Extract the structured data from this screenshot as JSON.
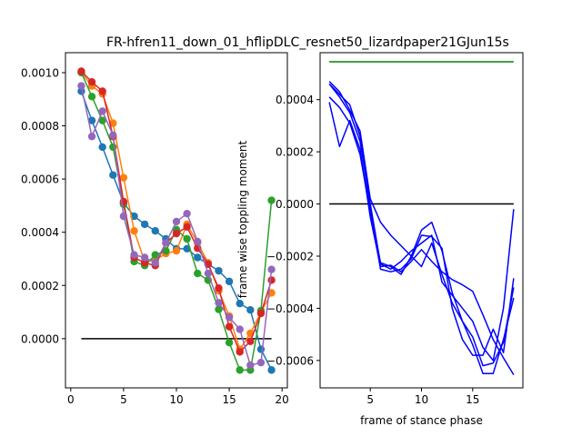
{
  "figure": {
    "title": "FR-hfren11_down_01_hflipDLC_resnet50_lizardpaper21GJun15s"
  },
  "chart_data": [
    {
      "type": "line",
      "panel": "left",
      "title": "",
      "xlabel": "",
      "ylabel": "",
      "xlim": [
        -0.5,
        20.5
      ],
      "ylim": [
        -0.000185,
        0.001075
      ],
      "xticks": [
        0,
        5,
        10,
        15,
        20
      ],
      "xtick_labels": [
        "0",
        "5",
        "10",
        "15",
        "20"
      ],
      "yticks": [
        0.0,
        0.0002,
        0.0004,
        0.0006,
        0.0008,
        0.001
      ],
      "ytick_labels": [
        "0.0000",
        "0.0002",
        "0.0004",
        "0.0006",
        "0.0008",
        "0.0010"
      ],
      "grid": false,
      "markers": true,
      "x": [
        1,
        2,
        3,
        4,
        5,
        6,
        7,
        8,
        9,
        10,
        11,
        12,
        13,
        14,
        15,
        16,
        17,
        18,
        19
      ],
      "series": [
        {
          "color": "#1f77b4",
          "values": [
            0.00093,
            0.00082,
            0.00072,
            0.000615,
            0.00051,
            0.00046,
            0.00043,
            0.000405,
            0.000375,
            0.000338,
            0.000338,
            0.000305,
            0.00028,
            0.000255,
            0.000215,
            0.000132,
            0.000108,
            -4e-05,
            -0.000118
          ]
        },
        {
          "color": "#ff7f0e",
          "values": [
            0.001,
            0.00095,
            0.00092,
            0.00081,
            0.000605,
            0.000405,
            0.00029,
            0.000295,
            0.00032,
            0.00033,
            0.00043,
            0.00036,
            0.000285,
            0.00018,
            8.5e-05,
            -4e-05,
            2e-05,
            0.0001,
            0.000172
          ]
        },
        {
          "color": "#2ca02c",
          "values": [
            0.001,
            0.00091,
            0.00082,
            0.00072,
            0.000505,
            0.00029,
            0.000275,
            0.000315,
            0.00033,
            0.00041,
            0.000375,
            0.000245,
            0.00022,
            0.00011,
            -1.5e-05,
            -0.000118,
            -0.000118,
            0.000105,
            0.00052
          ]
        },
        {
          "color": "#d62728",
          "values": [
            0.001005,
            0.000965,
            0.00093,
            0.00076,
            0.000515,
            0.000305,
            0.000285,
            0.000275,
            0.00036,
            0.000395,
            0.00042,
            0.00034,
            0.00028,
            0.00019,
            4.5e-05,
            -5e-05,
            -1e-05,
            9.5e-05,
            0.00022
          ]
        },
        {
          "color": "#9467bd",
          "values": [
            0.00095,
            0.00076,
            0.000855,
            0.000765,
            0.00046,
            0.000315,
            0.000305,
            0.000285,
            0.00036,
            0.00044,
            0.00047,
            0.000365,
            0.000245,
            0.000135,
            8e-05,
            3.5e-05,
            -0.0001,
            -9e-05,
            0.00026
          ]
        }
      ],
      "reference_line": {
        "color": "#000000",
        "x": [
          1,
          19
        ],
        "y": [
          0,
          0
        ]
      }
    },
    {
      "type": "line",
      "panel": "right",
      "title": "",
      "xlabel": "frame of stance phase",
      "ylabel": "frame wise toppling moment",
      "xlim": [
        0.1,
        19.9
      ],
      "ylim": [
        -0.000705,
        0.00058
      ],
      "xticks": [
        5,
        10,
        15
      ],
      "xtick_labels": [
        "5",
        "10",
        "15"
      ],
      "yticks": [
        -0.0006,
        -0.0004,
        -0.0002,
        0.0,
        0.0002,
        0.0004
      ],
      "ytick_labels": [
        "−0.0006",
        "−0.0004",
        "−0.0002",
        "0.0000",
        "0.0002",
        "0.0004"
      ],
      "grid": false,
      "markers": false,
      "x": [
        1,
        2,
        3,
        4,
        5,
        6,
        7,
        8,
        9,
        10,
        11,
        12,
        13,
        14,
        15,
        16,
        17,
        18,
        19
      ],
      "series": [
        {
          "color": "#0000ff",
          "values": [
            0.00046,
            0.00042,
            0.00038,
            0.00026,
            -2e-05,
            -0.00025,
            -0.00026,
            -0.00025,
            -0.00021,
            -0.00012,
            -0.000125,
            -0.00017,
            -0.0004,
            -0.00052,
            -0.00058,
            -0.00058,
            -0.00048,
            -0.00057,
            -0.000285
          ]
        },
        {
          "color": "#0000ff",
          "values": [
            0.00039,
            0.00022,
            0.00032,
            0.00021,
            -5e-05,
            -0.00024,
            -0.000235,
            -0.00026,
            -0.00022,
            -0.000175,
            -0.00022,
            -0.00026,
            -0.00029,
            -0.00031,
            -0.000335,
            -0.000425,
            -0.00052,
            -0.00059,
            -0.000655
          ]
        },
        {
          "color": "#0000ff",
          "values": [
            0.00041,
            0.00037,
            0.00031,
            0.00019,
            -3e-05,
            -0.000225,
            -0.00024,
            -0.00027,
            -0.0002,
            -0.0001,
            -7e-05,
            -0.00018,
            -0.00034,
            -0.00045,
            -0.00054,
            -0.00065,
            -0.00065,
            -0.00052,
            -0.00036
          ]
        },
        {
          "color": "#0000ff",
          "values": [
            0.00047,
            0.00043,
            0.00036,
            0.00028,
            2e-05,
            -7e-05,
            -0.00012,
            -0.00016,
            -0.0002,
            -0.00024,
            -0.00015,
            -0.00027,
            -0.00038,
            -0.00045,
            -0.00051,
            -0.00062,
            -0.00061,
            -0.00053,
            -0.00032
          ]
        },
        {
          "color": "#0000ff",
          "values": [
            0.00046,
            0.00041,
            0.00035,
            0.00024,
            0.0,
            -0.00023,
            -0.00025,
            -0.00022,
            -0.00018,
            -0.00015,
            -0.00012,
            -0.0003,
            -0.00035,
            -0.0004,
            -0.00045,
            -0.00055,
            -0.0006,
            -0.0004,
            -2e-05
          ]
        }
      ],
      "reference_line": {
        "color": "#000000",
        "x": [
          1,
          19
        ],
        "y": [
          0,
          0
        ]
      },
      "upper_line": {
        "color": "#008000",
        "x": [
          1,
          19
        ],
        "y": [
          0.000545,
          0.000545
        ]
      }
    }
  ]
}
